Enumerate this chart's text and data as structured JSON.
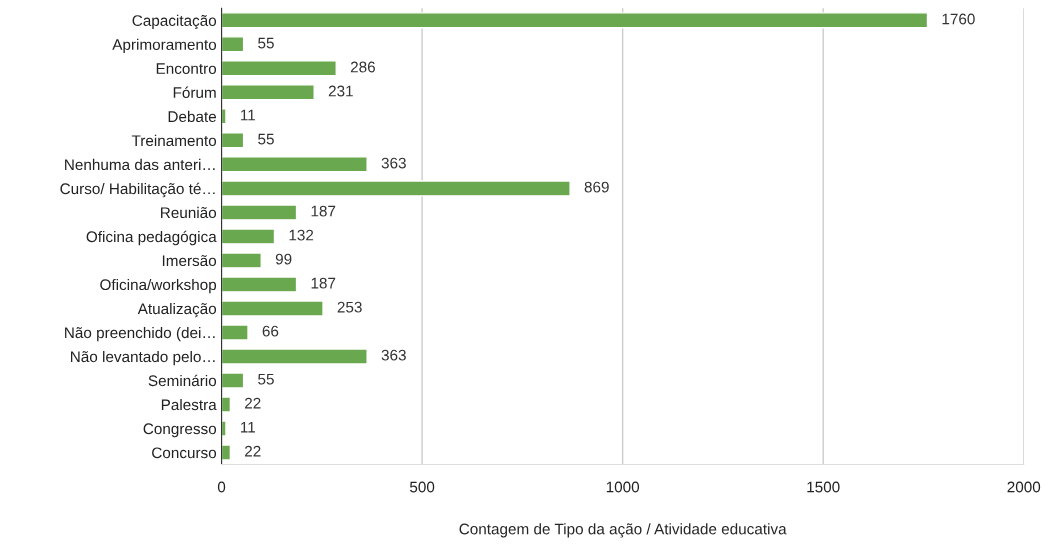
{
  "chart_data": {
    "type": "bar",
    "orientation": "horizontal",
    "xlabel": "Contagem de Tipo da ação / Atividade educativa",
    "categories": [
      "Capacitação",
      "Aprimoramento",
      "Encontro",
      "Fórum",
      "Debate",
      "Treinamento",
      "Nenhuma das anteri…",
      "Curso/ Habilitação té…",
      "Reunião",
      "Oficina pedagógica",
      "Imersão",
      "Oficina/workshop",
      "Atualização",
      "Não preenchido (dei…",
      "Não levantado pelo…",
      "Seminário",
      "Palestra",
      "Congresso",
      "Concurso"
    ],
    "values": [
      1760,
      55,
      286,
      231,
      11,
      55,
      363,
      869,
      187,
      132,
      99,
      187,
      253,
      66,
      363,
      55,
      22,
      11,
      22
    ],
    "color": "#6aa84f",
    "xlim": [
      0,
      2000
    ],
    "xticks": [
      0,
      500,
      1000,
      1500,
      2000
    ],
    "grid": "x",
    "data_labels": true
  }
}
